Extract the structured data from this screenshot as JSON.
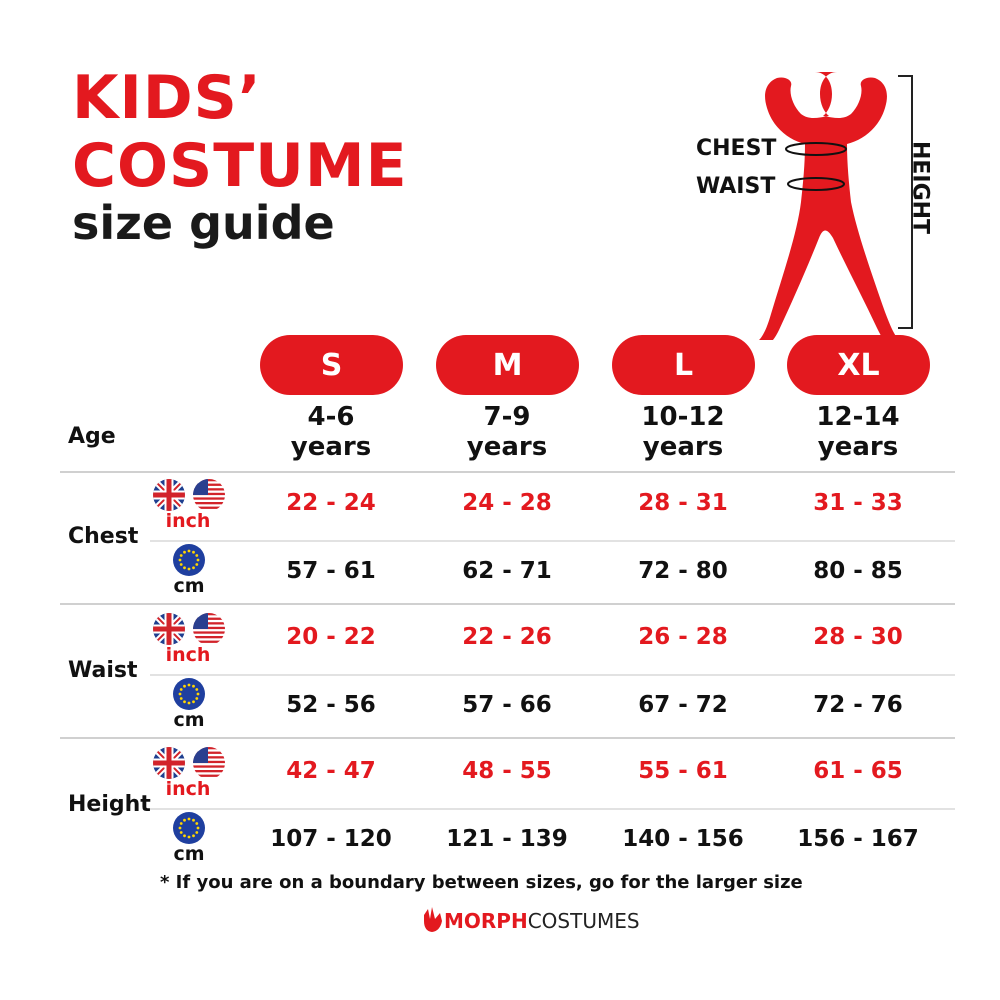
{
  "title_line1": "KIDS’",
  "title_line2": "COSTUME",
  "subtitle": "size guide",
  "figure": {
    "chest": "CHEST",
    "waist": "WAIST",
    "height": "HEIGHT"
  },
  "age_label": "Age",
  "sizes": [
    {
      "label": "S",
      "age": "4-6",
      "age_unit": "years"
    },
    {
      "label": "M",
      "age": "7-9",
      "age_unit": "years"
    },
    {
      "label": "L",
      "age": "10-12",
      "age_unit": "years"
    },
    {
      "label": "XL",
      "age": "12-14",
      "age_unit": "years"
    }
  ],
  "units": {
    "inch": "inch",
    "cm": "cm"
  },
  "measurements": [
    {
      "label": "Chest",
      "inch": [
        "22 - 24",
        "24 - 28",
        "28 - 31",
        "31 - 33"
      ],
      "cm": [
        "57 - 61",
        "62 - 71",
        "72 - 80",
        "80 - 85"
      ]
    },
    {
      "label": "Waist",
      "inch": [
        "20 - 22",
        "22 - 26",
        "26 - 28",
        "28 - 30"
      ],
      "cm": [
        "52 - 56",
        "57 - 66",
        "67 - 72",
        "72 - 76"
      ]
    },
    {
      "label": "Height",
      "inch": [
        "42 - 47",
        "48 - 55",
        "55 - 61",
        "61 - 65"
      ],
      "cm": [
        "107 - 120",
        "121 - 139",
        "140 - 156",
        "156 - 167"
      ]
    }
  ],
  "footnote": "* If you are on a boundary between sizes, go for the larger size",
  "logo": {
    "brand_a": "MORPH",
    "brand_b": "COSTUMES"
  },
  "colors": {
    "accent": "#e3191f",
    "text": "#111111"
  }
}
